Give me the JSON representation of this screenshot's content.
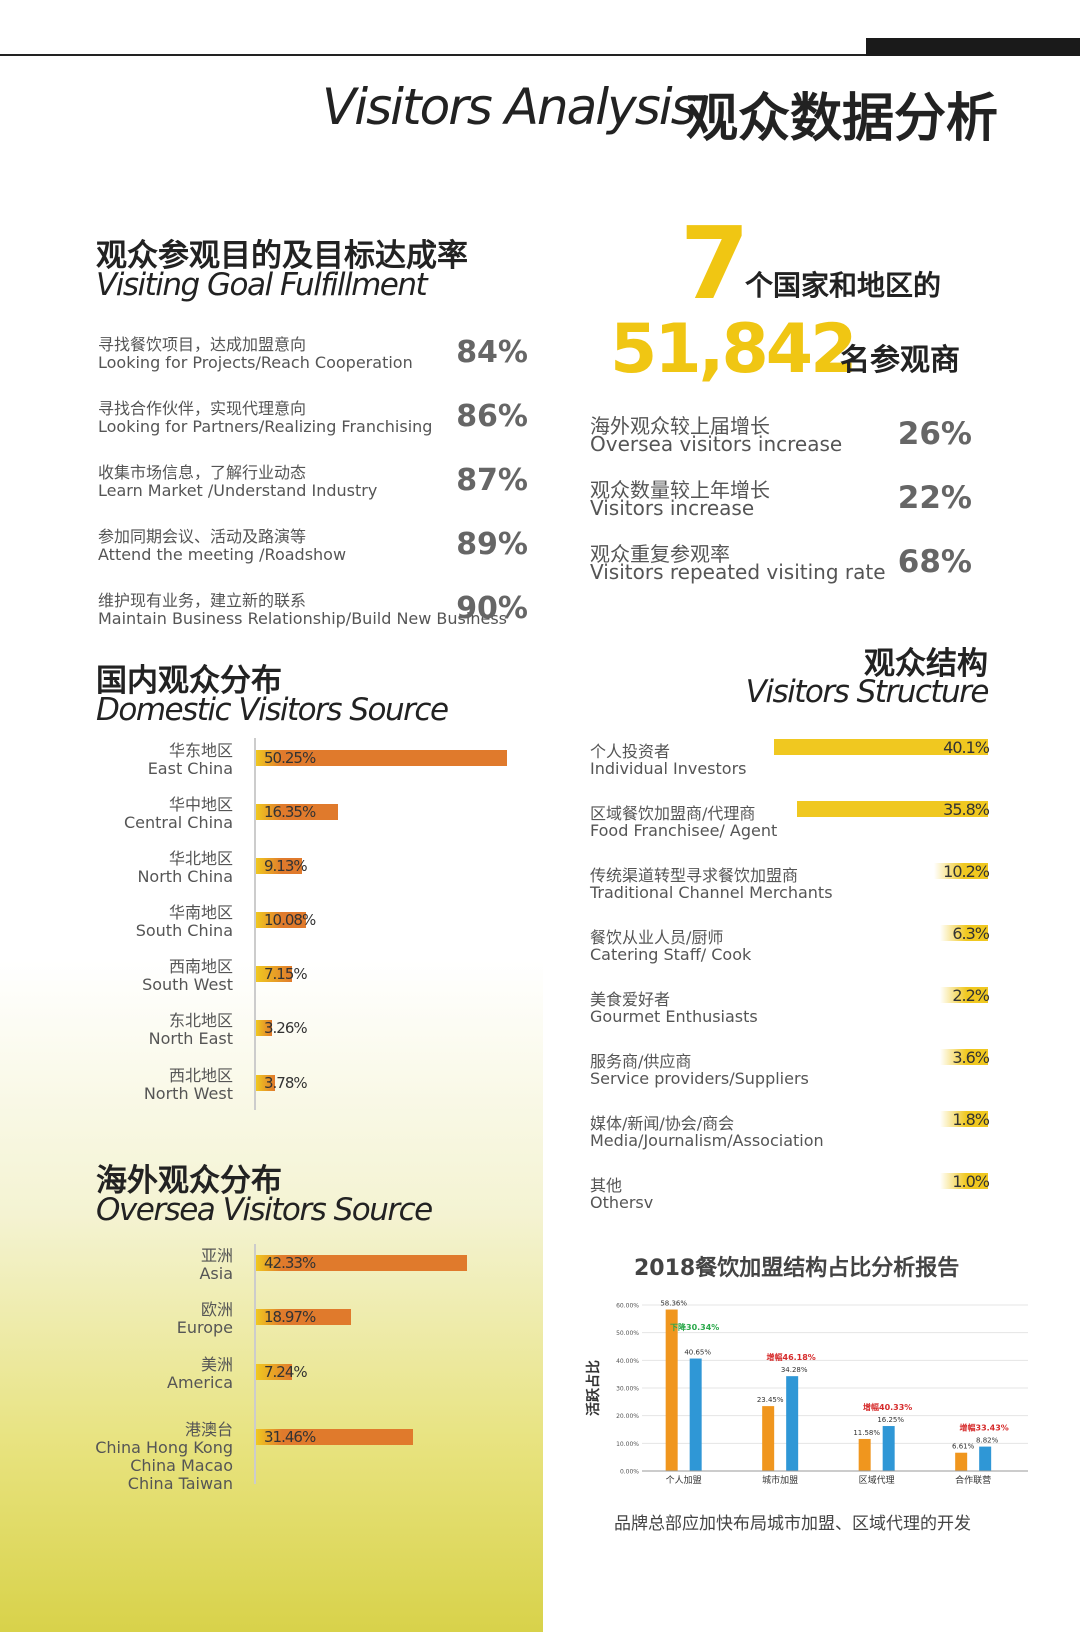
{
  "header": {
    "title_en": "Visitors Analysis",
    "title_cn": "观众数据分析"
  },
  "goals": {
    "title_cn": "观众参观目的及目标达成率",
    "title_en": "Visiting Goal Fulfillment",
    "items": [
      {
        "cn": "寻找餐饮项目，达成加盟意向",
        "en": "Looking for Projects/Reach Cooperation",
        "pct": "84%"
      },
      {
        "cn": "寻找合作伙伴，实现代理意向",
        "en": "Looking for Partners/Realizing Franchising",
        "pct": "86%"
      },
      {
        "cn": "收集市场信息，了解行业动态",
        "en": "Learn Market /Understand Industry",
        "pct": "87%"
      },
      {
        "cn": "参加同期会议、活动及路演等",
        "en": "Attend the meeting /Roadshow",
        "pct": "89%"
      },
      {
        "cn": "维护现有业务，建立新的联系",
        "en": "Maintain Business Relationship/Build New Business",
        "pct": "90%"
      }
    ]
  },
  "summary": {
    "countries": "7",
    "countries_label": "个国家和地区的",
    "visitors": "51,842",
    "visitors_label": "名参观商",
    "stats": [
      {
        "cn": "海外观众较上届增长",
        "en": "Oversea visitors increase",
        "pct": "26%"
      },
      {
        "cn": "观众数量较上年增长",
        "en": "Visitors increase",
        "pct": "22%"
      },
      {
        "cn": "观众重复参观率",
        "en": "Visitors repeated visiting rate",
        "pct": "68%"
      }
    ]
  },
  "domestic": {
    "title_cn": "国内观众分布",
    "title_en": "Domestic Visitors Source"
  },
  "oversea": {
    "title_cn": "海外观众分布",
    "title_en": "Oversea Visitors Source"
  },
  "structure": {
    "title_cn": "观众结构",
    "title_en": "Visitors Structure"
  },
  "report": {
    "title": "2018餐饮加盟结构占比分析报告",
    "caption": "品牌总部应加快布局城市加盟、区域代理的开发"
  },
  "colors": {
    "accent_yellow": "#f0c613",
    "bar_orange": "#e07a2c",
    "bar_yellow": "#f0c820",
    "chart_orange": "#f0961e",
    "chart_blue": "#2f97d6",
    "up_red": "#d62b2b",
    "down_green": "#2aa84a"
  },
  "chart_data": [
    {
      "type": "bar",
      "orientation": "horizontal",
      "categories": [
        {
          "cn": "华东地区",
          "en": "East China"
        },
        {
          "cn": "华中地区",
          "en": "Central China"
        },
        {
          "cn": "华北地区",
          "en": "North China"
        },
        {
          "cn": "华南地区",
          "en": "South China"
        },
        {
          "cn": "西南地区",
          "en": "South West"
        },
        {
          "cn": "东北地区",
          "en": "North East"
        },
        {
          "cn": "西北地区",
          "en": "North West"
        }
      ],
      "values": [
        50.25,
        16.35,
        9.13,
        10.08,
        7.15,
        3.26,
        3.78
      ],
      "labels": [
        "50.25%",
        "16.35%",
        "9.13%",
        "10.08%",
        "7.15%",
        "3.26%",
        "3.78%"
      ],
      "xlim": [
        0,
        50.25
      ]
    },
    {
      "type": "bar",
      "orientation": "horizontal",
      "categories": [
        {
          "cn": "亚洲",
          "en": "Asia"
        },
        {
          "cn": "欧洲",
          "en": "Europe"
        },
        {
          "cn": "美洲",
          "en": "America"
        },
        {
          "cn": "港澳台",
          "en": "China Hong Kong\nChina Macao\nChina Taiwan"
        }
      ],
      "values": [
        42.33,
        18.97,
        7.24,
        31.46
      ],
      "labels": [
        "42.33%",
        "18.97%",
        "7.24%",
        "31.46%"
      ],
      "xlim": [
        0,
        50.25
      ]
    },
    {
      "type": "bar",
      "orientation": "horizontal",
      "categories": [
        {
          "cn": "个人投资者",
          "en": "Individual Investors"
        },
        {
          "cn": "区域餐饮加盟商/代理商",
          "en": "Food Franchisee/ Agent"
        },
        {
          "cn": "传统渠道转型寻求餐饮加盟商",
          "en": "Traditional Channel Merchants"
        },
        {
          "cn": "餐饮从业人员/厨师",
          "en": "Catering Staff/ Cook"
        },
        {
          "cn": "美食爱好者",
          "en": "Gourmet Enthusiasts"
        },
        {
          "cn": "服务商/供应商",
          "en": "Service providers/Suppliers"
        },
        {
          "cn": "媒体/新闻/协会/商会",
          "en": "Media/Journalism/Association"
        },
        {
          "cn": "其他",
          "en": "Othersv"
        }
      ],
      "values": [
        40.1,
        35.8,
        10.2,
        6.3,
        2.2,
        3.6,
        1.8,
        1.0
      ],
      "labels": [
        "40.1%",
        "35.8%",
        "10.2%",
        "6.3%",
        "2.2%",
        "3.6%",
        "1.8%",
        "1.0%"
      ],
      "xlim": [
        0,
        40.1
      ]
    },
    {
      "type": "bar",
      "title": "2018餐饮加盟结构占比分析报告",
      "ylabel": "活跃占比",
      "categories": [
        "个人加盟",
        "城市加盟",
        "区域代理",
        "合作联营"
      ],
      "series": [
        {
          "values": [
            58.36,
            23.45,
            11.58,
            6.61
          ]
        },
        {
          "values": [
            40.65,
            34.28,
            16.25,
            8.82
          ]
        }
      ],
      "bar_labels": [
        [
          "58.36%",
          "23.45%",
          "11.58%",
          "6.61%"
        ],
        [
          "40.65%",
          "34.28%",
          "16.25%",
          "8.82%"
        ]
      ],
      "annotations": [
        {
          "text": "下降30.34%",
          "trend": "down"
        },
        {
          "text": "增幅46.18%",
          "trend": "up"
        },
        {
          "text": "增幅40.33%",
          "trend": "up"
        },
        {
          "text": "增幅33.43%",
          "trend": "up"
        }
      ],
      "yticks": [
        "0.00%",
        "10.00%",
        "20.00%",
        "30.00%",
        "40.00%",
        "50.00%",
        "60.00%"
      ],
      "ylim": [
        0,
        60
      ]
    }
  ]
}
